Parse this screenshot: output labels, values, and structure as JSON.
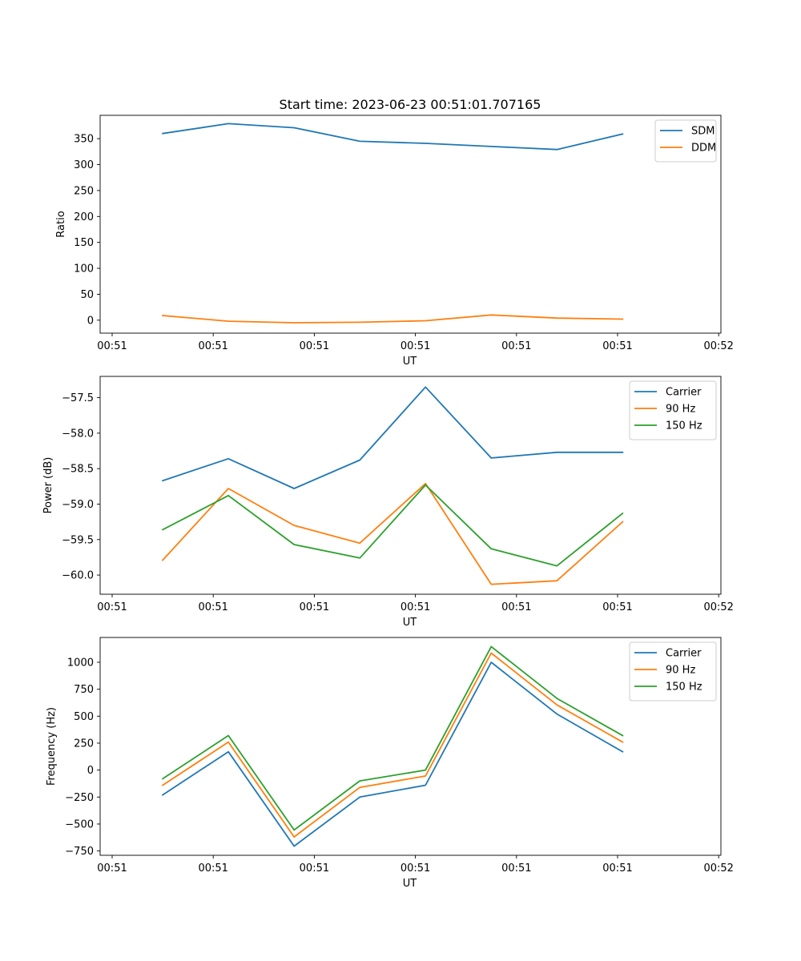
{
  "figure": {
    "title": "Start time: 2023-06-23 00:51:01.707165"
  },
  "colors": {
    "blue": "#1f77b4",
    "orange": "#ff7f0e",
    "green": "#2ca02c",
    "axes": "#000000",
    "legend_border": "#cccccc"
  },
  "chart_data": [
    {
      "type": "line",
      "xlabel": "UT",
      "ylabel": "Ratio",
      "xlim": [
        0,
        6
      ],
      "ylim": [
        -25,
        395
      ],
      "xticks": [
        0,
        1,
        2,
        3,
        4,
        5,
        6
      ],
      "xtick_labels": [
        "00:51",
        "00:51",
        "00:51",
        "00:51",
        "00:51",
        "00:51",
        "00:52"
      ],
      "yticks": [
        0,
        50,
        100,
        150,
        200,
        250,
        300,
        350
      ],
      "ytick_labels": [
        "0",
        "50",
        "100",
        "150",
        "200",
        "250",
        "300",
        "350"
      ],
      "legend_position": "top-right",
      "x": [
        0.5,
        1.15,
        1.8,
        2.45,
        3.1,
        3.75,
        4.4,
        5.05
      ],
      "series": [
        {
          "name": "SDM",
          "color": "#1f77b4",
          "values": [
            360,
            379,
            371,
            345,
            341,
            335,
            329,
            359
          ]
        },
        {
          "name": "DDM",
          "color": "#ff7f0e",
          "values": [
            9,
            -2,
            -5,
            -4,
            -1,
            10,
            4,
            2
          ]
        }
      ]
    },
    {
      "type": "line",
      "xlabel": "UT",
      "ylabel": "Power (dB)",
      "xlim": [
        0,
        6
      ],
      "ylim": [
        -60.27,
        -57.2
      ],
      "xticks": [
        0,
        1,
        2,
        3,
        4,
        5,
        6
      ],
      "xtick_labels": [
        "00:51",
        "00:51",
        "00:51",
        "00:51",
        "00:51",
        "00:51",
        "00:52"
      ],
      "yticks": [
        -60.0,
        -59.5,
        -59.0,
        -58.5,
        -58.0,
        -57.5
      ],
      "ytick_labels": [
        "−60.0",
        "−59.5",
        "−59.0",
        "−58.5",
        "−58.0",
        "−57.5"
      ],
      "legend_position": "top-right",
      "x": [
        0.5,
        1.15,
        1.8,
        2.45,
        3.1,
        3.75,
        4.4,
        5.05
      ],
      "series": [
        {
          "name": "Carrier",
          "color": "#1f77b4",
          "values": [
            -58.67,
            -58.36,
            -58.78,
            -58.38,
            -57.35,
            -58.35,
            -58.27,
            -58.27
          ]
        },
        {
          "name": "90 Hz",
          "color": "#ff7f0e",
          "values": [
            -59.79,
            -58.78,
            -59.3,
            -59.55,
            -58.71,
            -60.13,
            -60.08,
            -59.25
          ]
        },
        {
          "name": "150 Hz",
          "color": "#2ca02c",
          "values": [
            -59.36,
            -58.88,
            -59.57,
            -59.76,
            -58.73,
            -59.63,
            -59.87,
            -59.13
          ]
        }
      ]
    },
    {
      "type": "line",
      "xlabel": "UT",
      "ylabel": "Frequency (Hz)",
      "xlim": [
        0,
        6
      ],
      "ylim": [
        -790,
        1230
      ],
      "xticks": [
        0,
        1,
        2,
        3,
        4,
        5,
        6
      ],
      "xtick_labels": [
        "00:51",
        "00:51",
        "00:51",
        "00:51",
        "00:51",
        "00:51",
        "00:52"
      ],
      "yticks": [
        -750,
        -500,
        -250,
        0,
        250,
        500,
        750,
        1000
      ],
      "ytick_labels": [
        "−750",
        "−500",
        "−250",
        "0",
        "250",
        "500",
        "750",
        "1000"
      ],
      "legend_position": "top-right",
      "x": [
        0.5,
        1.15,
        1.8,
        2.45,
        3.1,
        3.75,
        4.4,
        5.05
      ],
      "series": [
        {
          "name": "Carrier",
          "color": "#1f77b4",
          "values": [
            -230,
            170,
            -705,
            -250,
            -140,
            1000,
            520,
            170
          ]
        },
        {
          "name": "90 Hz",
          "color": "#ff7f0e",
          "values": [
            -140,
            260,
            -620,
            -160,
            -55,
            1085,
            605,
            260
          ]
        },
        {
          "name": "150 Hz",
          "color": "#2ca02c",
          "values": [
            -80,
            320,
            -555,
            -100,
            0,
            1145,
            665,
            320
          ]
        }
      ]
    }
  ]
}
